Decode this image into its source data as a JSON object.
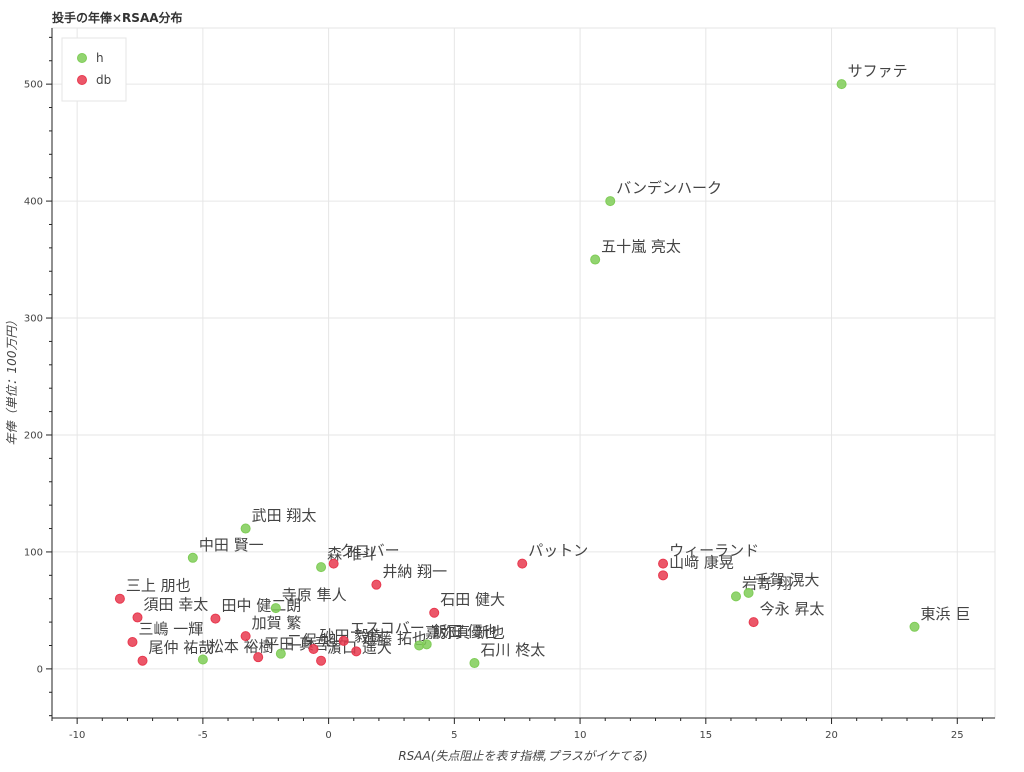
{
  "chart_data": {
    "type": "scatter",
    "title": "投手の年俸×RSAA分布",
    "xlabel": "RSAA(失点阻止を表す指標,プラスがイケてる)",
    "ylabel": "年俸（単位：100万円）",
    "xlim": [
      -11,
      26.5
    ],
    "ylim": [
      -42,
      548
    ],
    "x_ticks": [
      -10,
      -5,
      0,
      5,
      10,
      15,
      20,
      25
    ],
    "y_ticks": [
      0,
      100,
      200,
      300,
      400,
      500
    ],
    "grid": true,
    "legend_position": "top-left",
    "series": [
      {
        "name": "h",
        "color": "#7fcc57",
        "points": [
          {
            "x": 20.4,
            "y": 500,
            "label": "サファテ"
          },
          {
            "x": 11.2,
            "y": 400,
            "label": "バンデンハーク"
          },
          {
            "x": 10.6,
            "y": 350,
            "label": "五十嵐 亮太"
          },
          {
            "x": -3.3,
            "y": 120,
            "label": "武田 翔太"
          },
          {
            "x": -5.4,
            "y": 95,
            "label": "中田 賢一"
          },
          {
            "x": -0.3,
            "y": 87,
            "label": "森 唯斗"
          },
          {
            "x": -2.1,
            "y": 52,
            "label": "寺原 隼人"
          },
          {
            "x": 16.7,
            "y": 65,
            "label": "千賀 滉大"
          },
          {
            "x": 16.2,
            "y": 62,
            "label": "岩嵜 翔"
          },
          {
            "x": 23.3,
            "y": 36,
            "label": "東浜 巨"
          },
          {
            "x": 5.8,
            "y": 5,
            "label": "石川 柊太"
          },
          {
            "x": -5.0,
            "y": 8,
            "label": "松本 裕樹"
          },
          {
            "x": -1.9,
            "y": 13,
            "label": "二保 旭"
          },
          {
            "x": 3.9,
            "y": 21,
            "label": "飯田 優也"
          },
          {
            "x": 3.6,
            "y": 20,
            "label": "嘉弥真 新也"
          }
        ]
      },
      {
        "name": "db",
        "color": "#e8394f",
        "points": [
          {
            "x": 7.7,
            "y": 90,
            "label": "パットン"
          },
          {
            "x": 13.3,
            "y": 90,
            "label": "ウィーランド"
          },
          {
            "x": 13.3,
            "y": 80,
            "label": "山﨑 康晃"
          },
          {
            "x": 16.9,
            "y": 40,
            "label": "今永 昇太"
          },
          {
            "x": 0.2,
            "y": 90,
            "label": "クロバー"
          },
          {
            "x": 1.9,
            "y": 72,
            "label": "井納 翔一"
          },
          {
            "x": -8.3,
            "y": 60,
            "label": "三上 朋也"
          },
          {
            "x": -7.6,
            "y": 44,
            "label": "須田 幸太"
          },
          {
            "x": -4.5,
            "y": 43,
            "label": "田中 健二朗"
          },
          {
            "x": -3.3,
            "y": 28,
            "label": "加賀 繁"
          },
          {
            "x": -7.8,
            "y": 23,
            "label": "三嶋 一輝"
          },
          {
            "x": -7.4,
            "y": 7,
            "label": "尾仲 祐哉"
          },
          {
            "x": -2.8,
            "y": 10,
            "label": "平田 真吾"
          },
          {
            "x": -0.6,
            "y": 17,
            "label": "砂田 毅樹"
          },
          {
            "x": 1.1,
            "y": 15,
            "label": "進藤 拓也"
          },
          {
            "x": 4.2,
            "y": 48,
            "label": "石田 健大"
          },
          {
            "x": -0.3,
            "y": 7,
            "label": "濵口 遥大"
          },
          {
            "x": 0.6,
            "y": 24,
            "label": "エスコバー"
          }
        ]
      }
    ]
  }
}
